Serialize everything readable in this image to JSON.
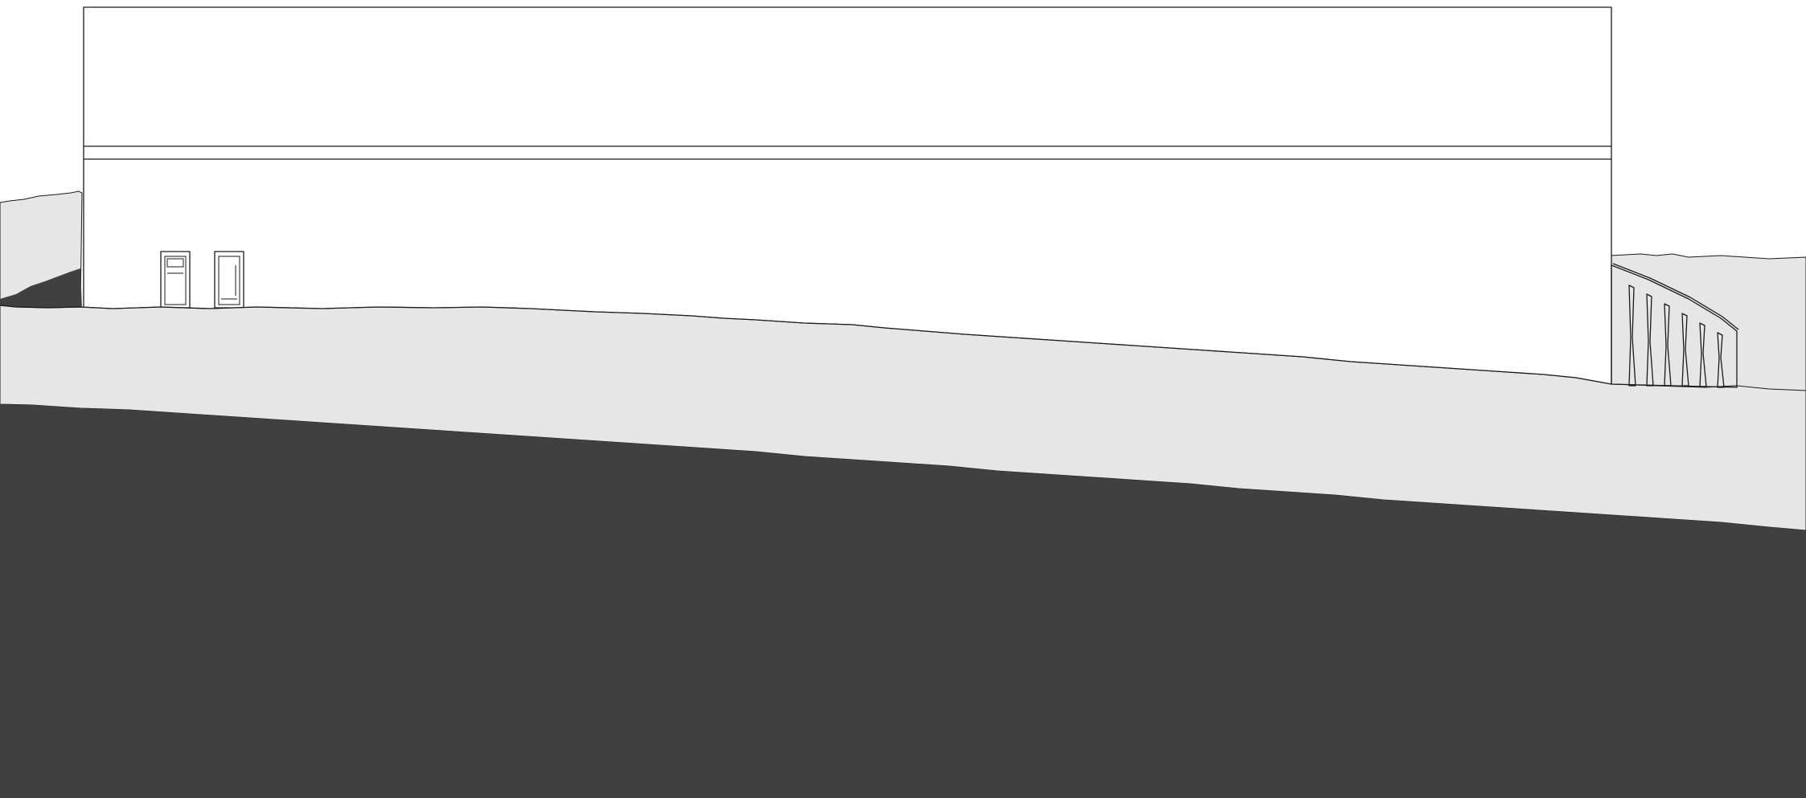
{
  "drawing": {
    "type": "building-elevation",
    "colors": {
      "background": "#ffffff",
      "building_fill": "#ffffff",
      "outline": "#1a1a1a",
      "terrain_light": "#e6e6e6",
      "terrain_dark": "#404040"
    },
    "elements": {
      "building": "long-flat-roof-facade",
      "roof_band": "fascia",
      "doors": [
        "door",
        "door"
      ],
      "retaining_structure": "stepped-concrete-fins",
      "fin_count": 6
    }
  }
}
